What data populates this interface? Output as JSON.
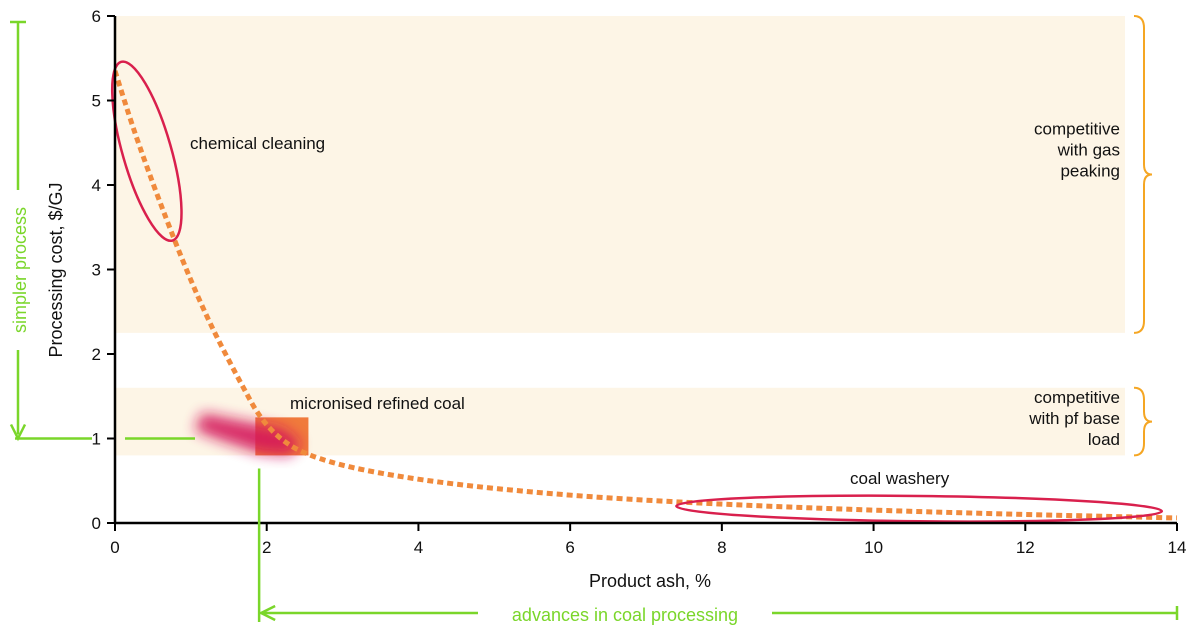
{
  "chart_data": {
    "type": "line",
    "title": "",
    "xlabel": "Product ash, %",
    "ylabel": "Processing cost, $/GJ",
    "xlim": [
      0,
      14
    ],
    "ylim": [
      0,
      6
    ],
    "x_ticks": [
      0,
      2,
      4,
      6,
      8,
      10,
      12,
      14
    ],
    "y_ticks": [
      0,
      1,
      2,
      3,
      4,
      5,
      6
    ],
    "grid": false,
    "series": [
      {
        "style": "dotted",
        "color": "#f08a3c",
        "points": [
          {
            "x": 0.0,
            "y": 5.35
          },
          {
            "x": 0.3,
            "y": 4.5
          },
          {
            "x": 0.8,
            "y": 3.3
          },
          {
            "x": 1.2,
            "y": 2.45
          },
          {
            "x": 1.6,
            "y": 1.75
          },
          {
            "x": 2.0,
            "y": 1.1
          },
          {
            "x": 2.6,
            "y": 0.75
          },
          {
            "x": 4.0,
            "y": 0.5
          },
          {
            "x": 6.0,
            "y": 0.32
          },
          {
            "x": 8.0,
            "y": 0.22
          },
          {
            "x": 10.0,
            "y": 0.15
          },
          {
            "x": 12.0,
            "y": 0.1
          },
          {
            "x": 14.0,
            "y": 0.06
          }
        ]
      }
    ],
    "bands": [
      {
        "y_range": [
          2.25,
          6.0
        ],
        "color": "#fdf5e6",
        "label_lines": [
          "competitive",
          "with gas",
          "peaking"
        ]
      },
      {
        "y_range": [
          0.8,
          1.6
        ],
        "color": "#fdf5e6",
        "label_lines": [
          "competitive",
          "with pf base",
          "load"
        ]
      }
    ],
    "regions": [
      {
        "label": "chemical cleaning",
        "shape": "ellipse",
        "color": "#d9204d",
        "center": {
          "x": 0.42,
          "y": 4.4
        },
        "rx": 0.32,
        "ry": 1.1
      },
      {
        "label": "coal washery",
        "shape": "ellipse",
        "color": "#d9204d",
        "center": {
          "x": 10.6,
          "y": 0.17
        },
        "rx": 3.2,
        "ry": 0.15
      },
      {
        "label": "micronised refined coal",
        "shape": "blob",
        "color": "#d4155a",
        "x_range": [
          1.0,
          2.6
        ],
        "y_range": [
          0.75,
          1.35
        ],
        "highlight": {
          "x_range": [
            1.85,
            2.55
          ],
          "y_range": [
            0.8,
            1.25
          ],
          "color": "#f07a3c"
        }
      }
    ],
    "guides": {
      "color": "#7ad62a",
      "marker_x": 1.9,
      "marker_y": 1.0,
      "vertical_arrow_label": "simpler process",
      "horizontal_arrow_label": "advances in coal processing"
    },
    "brace_color": "#f5a623"
  }
}
